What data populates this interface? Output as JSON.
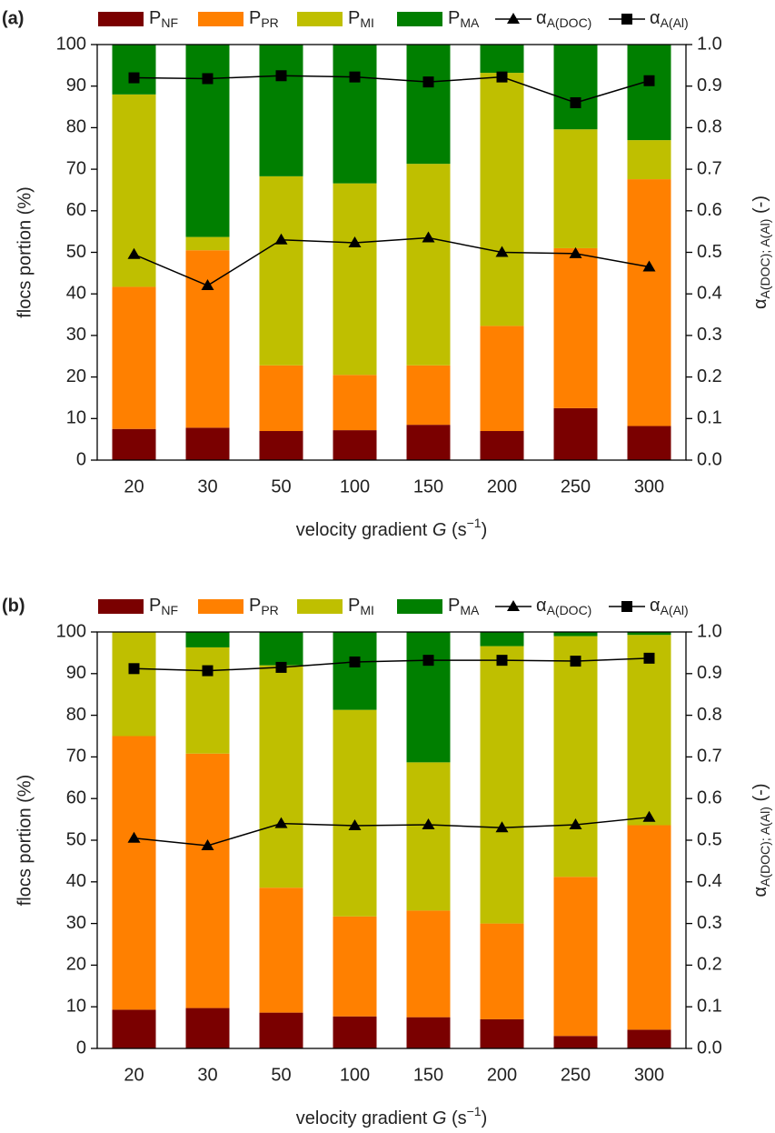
{
  "chart_data": [
    {
      "type": "bar",
      "stacked": true,
      "panel_label": "(a)",
      "ylabel": "flocs portion (%)",
      "y2label": "αA(DOC); A(Al) (-)",
      "xlabel": "velocity gradient G (s−1)",
      "legend": "top",
      "categories": [
        "20",
        "30",
        "50",
        "100",
        "150",
        "200",
        "250",
        "300"
      ],
      "ylim": [
        0,
        100
      ],
      "yticks": [
        0,
        10,
        20,
        30,
        40,
        50,
        60,
        70,
        80,
        90,
        100
      ],
      "y2lim": [
        0,
        1
      ],
      "y2ticks": [
        {
          "value": 0,
          "label": "0.0"
        },
        {
          "value": 0.1,
          "label": "0.1"
        },
        {
          "value": 0.2,
          "label": "0.2"
        },
        {
          "value": 0.3,
          "label": "0.3"
        },
        {
          "value": 0.4,
          "label": "0.4"
        },
        {
          "value": 0.5,
          "label": "0.5"
        },
        {
          "value": 0.6,
          "label": "0.6"
        },
        {
          "value": 0.7,
          "label": "0.7"
        },
        {
          "value": 0.8,
          "label": "0.8"
        },
        {
          "value": 0.9,
          "label": "0.9"
        },
        {
          "value": 1,
          "label": "1.0"
        }
      ],
      "series": [
        {
          "name": "PNF",
          "type": "bar",
          "color": "#7a0000",
          "values": [
            7.5,
            7.8,
            7,
            7.2,
            8.5,
            7,
            12.5,
            8.2
          ]
        },
        {
          "name": "PPR",
          "type": "bar",
          "color": "#ff8000",
          "values": [
            34.2,
            42.7,
            15.8,
            13.3,
            14.3,
            25.3,
            38.5,
            59.4
          ]
        },
        {
          "name": "PMI",
          "type": "bar",
          "color": "#bfbf00",
          "values": [
            46.3,
            3.2,
            45.5,
            46.1,
            48.5,
            60.9,
            28.6,
            9.4
          ]
        },
        {
          "name": "PMA",
          "type": "bar",
          "color": "#007f00",
          "values": [
            12,
            46.3,
            31.7,
            33.4,
            28.7,
            6.8,
            20.4,
            23
          ]
        },
        {
          "name": "αA(DOC)",
          "type": "line",
          "axis": "y2",
          "marker": "triangle",
          "color": "#000000",
          "values": [
            0.495,
            0.42,
            0.53,
            0.523,
            0.535,
            0.5,
            0.497,
            0.465
          ]
        },
        {
          "name": "αA(Al)",
          "type": "line",
          "axis": "y2",
          "marker": "square",
          "color": "#000000",
          "values": [
            0.92,
            0.918,
            0.925,
            0.922,
            0.91,
            0.922,
            0.86,
            0.913
          ]
        }
      ]
    },
    {
      "type": "bar",
      "stacked": true,
      "panel_label": "(b)",
      "ylabel": "flocs portion (%)",
      "y2label": "αA(DOC); A(Al) (-)",
      "xlabel": "velocity gradient G (s−1)",
      "legend": "top",
      "categories": [
        "20",
        "30",
        "50",
        "100",
        "150",
        "200",
        "250",
        "300"
      ],
      "ylim": [
        0,
        100
      ],
      "yticks": [
        0,
        10,
        20,
        30,
        40,
        50,
        60,
        70,
        80,
        90,
        100
      ],
      "y2lim": [
        0,
        1
      ],
      "y2ticks": [
        {
          "value": 0,
          "label": "0.0"
        },
        {
          "value": 0.1,
          "label": "0.1"
        },
        {
          "value": 0.2,
          "label": "0.2"
        },
        {
          "value": 0.3,
          "label": "0.3"
        },
        {
          "value": 0.4,
          "label": "0.4"
        },
        {
          "value": 0.5,
          "label": "0.5"
        },
        {
          "value": 0.6,
          "label": "0.6"
        },
        {
          "value": 0.7,
          "label": "0.7"
        },
        {
          "value": 0.8,
          "label": "0.8"
        },
        {
          "value": 0.9,
          "label": "0.9"
        },
        {
          "value": 1,
          "label": "1.0"
        }
      ],
      "series": [
        {
          "name": "PNF",
          "type": "bar",
          "color": "#7a0000",
          "values": [
            9.3,
            9.7,
            8.6,
            7.7,
            7.5,
            7,
            3,
            4.5
          ]
        },
        {
          "name": "PPR",
          "type": "bar",
          "color": "#ff8000",
          "values": [
            65.7,
            61.1,
            30,
            24,
            25.6,
            23,
            38.2,
            49.1
          ]
        },
        {
          "name": "PMI",
          "type": "bar",
          "color": "#bfbf00",
          "values": [
            25,
            25.5,
            53.4,
            49.6,
            35.6,
            66.6,
            57.8,
            45.7
          ]
        },
        {
          "name": "PMA",
          "type": "bar",
          "color": "#007f00",
          "values": [
            0,
            3.7,
            8,
            18.7,
            31.3,
            3.4,
            1,
            0.7
          ]
        },
        {
          "name": "αA(DOC)",
          "type": "line",
          "axis": "y2",
          "marker": "triangle",
          "color": "#000000",
          "values": [
            0.505,
            0.487,
            0.54,
            0.535,
            0.537,
            0.53,
            0.537,
            0.555
          ]
        },
        {
          "name": "αA(Al)",
          "type": "line",
          "axis": "y2",
          "marker": "square",
          "color": "#000000",
          "values": [
            0.912,
            0.907,
            0.915,
            0.928,
            0.932,
            0.932,
            0.93,
            0.937
          ]
        }
      ]
    }
  ]
}
